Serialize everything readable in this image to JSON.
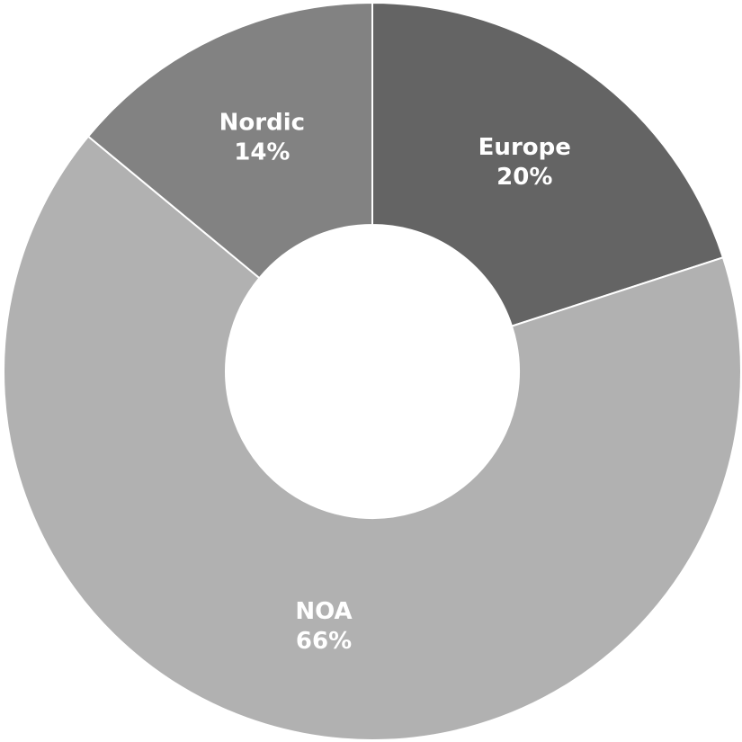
{
  "chart_data": {
    "type": "pie",
    "variant": "donut",
    "title": "",
    "legend": "none",
    "slices": [
      {
        "label": "Europe",
        "value": 20,
        "value_label": "20%",
        "color": "#646464"
      },
      {
        "label": "NOA",
        "value": 66,
        "value_label": "66%",
        "color": "#b1b1b1"
      },
      {
        "label": "Nordic",
        "value": 14,
        "value_label": "14%",
        "color": "#828282"
      }
    ]
  }
}
